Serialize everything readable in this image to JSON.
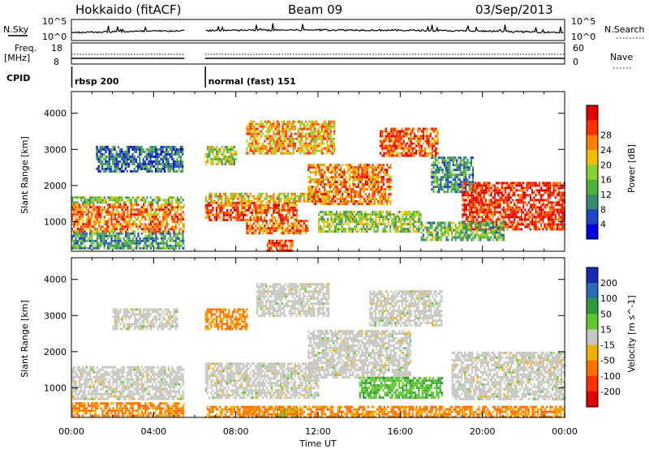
{
  "header": {
    "station": "Hokkaido (fitACF)",
    "beam": "Beam 09",
    "date": "03/Sep/2013"
  },
  "status_panels": {
    "nsky_label": "N.Sky",
    "nsearch_label": "N.Search",
    "nsky_ticks": [
      "10^5",
      "10^0"
    ],
    "nsearch_ticks": [
      "10^5",
      "10^0"
    ],
    "freq_label_line1": "Freq.",
    "freq_label_line2": "[MHz]",
    "freq_ticks": [
      "18",
      "8"
    ],
    "nave_label": "Nave",
    "nave_ticks": [
      "60",
      "0"
    ],
    "cpid_label": "CPID",
    "modes": [
      {
        "name": "rbsp 200",
        "start_hour": 0.0,
        "end_hour": 5.5
      },
      {
        "name": "normal (fast) 151",
        "start_hour": 6.5,
        "end_hour": 24.0
      }
    ]
  },
  "chart_data": [
    {
      "type": "heatmap",
      "quantity": "Power",
      "ylabel": "Slant Range [km]",
      "xlabel": "Time UT",
      "x_ticks": [
        "00:00",
        "04:00",
        "08:00",
        "12:00",
        "16:00",
        "20:00",
        "00:00"
      ],
      "xlim_hours": [
        0,
        24
      ],
      "y_ticks": [
        1000,
        2000,
        3000,
        4000
      ],
      "ylim_km": [
        180,
        4600
      ],
      "data_gap_hours": [
        5.5,
        6.5
      ],
      "colorbar": {
        "label": "Power [dB]",
        "ticks": [
          4,
          8,
          12,
          16,
          20,
          24,
          28
        ],
        "range": [
          0,
          30
        ],
        "colors": [
          "#0000d8",
          "#1a48c0",
          "#3a8a70",
          "#4fb040",
          "#8ad030",
          "#f0c000",
          "#ff8000",
          "#ff3000",
          "#e00000"
        ]
      },
      "echo_regions": [
        {
          "t0": 0.0,
          "t1": 5.5,
          "r0": 700,
          "r1": 1500,
          "level": 22
        },
        {
          "t0": 0.0,
          "t1": 5.5,
          "r0": 1500,
          "r1": 1700,
          "level": 13
        },
        {
          "t0": 1.2,
          "t1": 5.4,
          "r0": 2400,
          "r1": 3100,
          "level": 7
        },
        {
          "t0": 0.0,
          "t1": 5.5,
          "r0": 250,
          "r1": 700,
          "level": 10
        },
        {
          "t0": 6.5,
          "t1": 11.0,
          "r0": 1050,
          "r1": 1550,
          "level": 24
        },
        {
          "t0": 6.5,
          "t1": 12.5,
          "r0": 1550,
          "r1": 1800,
          "level": 18
        },
        {
          "t0": 8.5,
          "t1": 11.5,
          "r0": 650,
          "r1": 1050,
          "level": 22
        },
        {
          "t0": 9.5,
          "t1": 10.8,
          "r0": 230,
          "r1": 500,
          "level": 26
        },
        {
          "t0": 6.5,
          "t1": 8.0,
          "r0": 2600,
          "r1": 3100,
          "level": 15
        },
        {
          "t0": 8.5,
          "t1": 12.8,
          "r0": 2900,
          "r1": 3800,
          "level": 20
        },
        {
          "t0": 11.5,
          "t1": 15.5,
          "r0": 1500,
          "r1": 2600,
          "level": 22
        },
        {
          "t0": 15.0,
          "t1": 17.8,
          "r0": 2800,
          "r1": 3600,
          "level": 24
        },
        {
          "t0": 12.0,
          "t1": 17.0,
          "r0": 700,
          "r1": 1300,
          "level": 14
        },
        {
          "t0": 17.5,
          "t1": 19.5,
          "r0": 1800,
          "r1": 2800,
          "level": 9
        },
        {
          "t0": 19.0,
          "t1": 24.0,
          "r0": 800,
          "r1": 2100,
          "level": 26
        },
        {
          "t0": 17.0,
          "t1": 21.0,
          "r0": 500,
          "r1": 1000,
          "level": 12
        }
      ]
    },
    {
      "type": "heatmap",
      "quantity": "Velocity",
      "ylabel": "Slant Range [km]",
      "xlabel": "Time UT",
      "x_ticks": [
        "00:00",
        "04:00",
        "08:00",
        "12:00",
        "16:00",
        "20:00",
        "00:00"
      ],
      "xlim_hours": [
        0,
        24
      ],
      "y_ticks": [
        1000,
        2000,
        3000,
        4000
      ],
      "ylim_km": [
        180,
        4600
      ],
      "data_gap_hours": [
        5.5,
        6.5
      ],
      "colorbar": {
        "label": "Velocity [m s^-1]",
        "ticks": [
          200,
          100,
          50,
          15,
          -15,
          -50,
          -100,
          -200
        ],
        "colors": [
          "#1a2ab0",
          "#2a6ab8",
          "#2e9a40",
          "#60c830",
          "#c8c8c0",
          "#f0b000",
          "#ff7000",
          "#ff3000",
          "#e00000"
        ]
      },
      "echo_regions": [
        {
          "t0": 0.0,
          "t1": 5.5,
          "r0": 700,
          "r1": 1600,
          "level": 0
        },
        {
          "t0": 0.0,
          "t1": 5.5,
          "r0": 200,
          "r1": 600,
          "level": -60
        },
        {
          "t0": 2.0,
          "t1": 5.2,
          "r0": 2600,
          "r1": 3200,
          "level": 0
        },
        {
          "t0": 6.5,
          "t1": 12.0,
          "r0": 700,
          "r1": 1700,
          "level": 0
        },
        {
          "t0": 6.5,
          "t1": 8.5,
          "r0": 2600,
          "r1": 3200,
          "level": -60
        },
        {
          "t0": 9.0,
          "t1": 12.5,
          "r0": 3000,
          "r1": 3900,
          "level": 0
        },
        {
          "t0": 11.5,
          "t1": 16.5,
          "r0": 1300,
          "r1": 2600,
          "level": 0
        },
        {
          "t0": 14.5,
          "t1": 18.0,
          "r0": 2700,
          "r1": 3700,
          "level": 0
        },
        {
          "t0": 14.0,
          "t1": 18.0,
          "r0": 700,
          "r1": 1300,
          "level": 40
        },
        {
          "t0": 18.5,
          "t1": 24.0,
          "r0": 700,
          "r1": 2000,
          "level": 0
        },
        {
          "t0": 10.0,
          "t1": 11.0,
          "r0": 200,
          "r1": 500,
          "level": 40
        },
        {
          "t0": 6.5,
          "t1": 24.0,
          "r0": 200,
          "r1": 500,
          "level": -60
        }
      ]
    }
  ]
}
